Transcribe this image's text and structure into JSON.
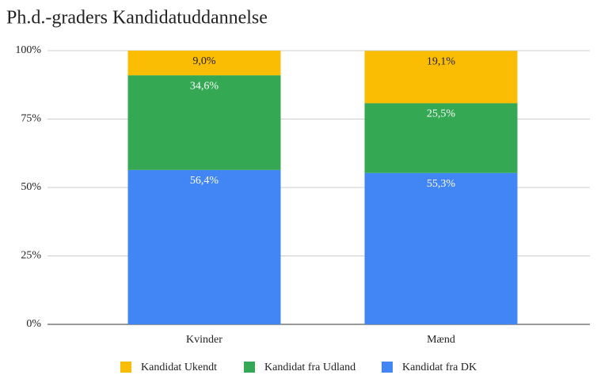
{
  "chart_data": {
    "type": "stacked_bar",
    "title": "Ph.d.-graders Kandidatuddannelse",
    "categories": [
      "Kvinder",
      "Mænd"
    ],
    "series": [
      {
        "name": "Kandidat Ukendt",
        "color": "#fbbc04",
        "values": [
          9.0,
          19.1
        ],
        "value_labels": [
          "9,0%",
          "19,1%"
        ]
      },
      {
        "name": "Kandidat fra Udland",
        "color": "#34a853",
        "values": [
          34.6,
          25.5
        ],
        "value_labels": [
          "34,6%",
          "25,5%"
        ]
      },
      {
        "name": "Kandidat fra DK",
        "color": "#4285f4",
        "values": [
          56.4,
          55.3
        ],
        "value_labels": [
          "56,4%",
          "55,3%"
        ]
      }
    ],
    "ylim": [
      0,
      100
    ],
    "yticks": [
      {
        "value": 0,
        "label": "0%"
      },
      {
        "value": 25,
        "label": "25%"
      },
      {
        "value": 50,
        "label": "50%"
      },
      {
        "value": 75,
        "label": "75%"
      },
      {
        "value": 100,
        "label": "100%"
      }
    ],
    "grid": true,
    "legend": "bottom"
  }
}
